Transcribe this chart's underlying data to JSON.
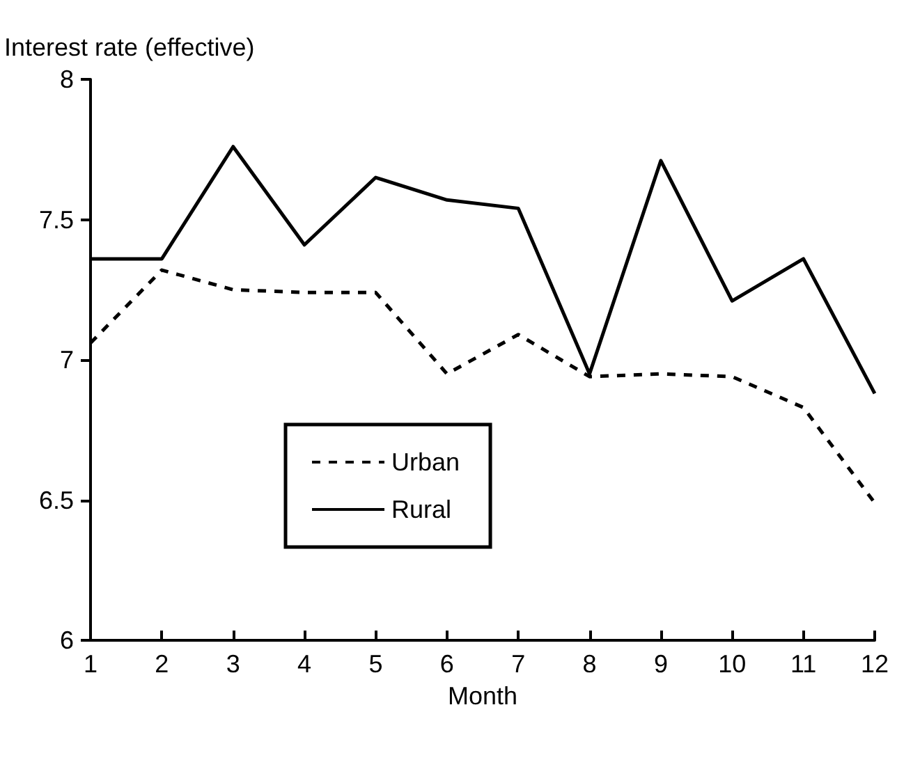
{
  "chart_data": {
    "type": "line",
    "xlabel": "Month",
    "ylabel": "Interest rate (effective)",
    "x": [
      1,
      2,
      3,
      4,
      5,
      6,
      7,
      8,
      9,
      10,
      11,
      12
    ],
    "series": [
      {
        "name": "Urban",
        "color": "#000000",
        "line_style": "dashed",
        "values": [
          7.06,
          7.32,
          7.25,
          7.24,
          7.24,
          6.95,
          7.09,
          6.94,
          6.95,
          6.94,
          6.83,
          6.49
        ]
      },
      {
        "name": "Rural",
        "color": "#000000",
        "line_style": "solid",
        "values": [
          7.36,
          7.36,
          7.76,
          7.41,
          7.65,
          7.57,
          7.54,
          6.95,
          7.71,
          7.21,
          7.36,
          6.88
        ]
      }
    ],
    "xlim": [
      1,
      12
    ],
    "xticks": [
      1,
      2,
      3,
      4,
      5,
      6,
      7,
      8,
      9,
      10,
      11,
      12
    ],
    "ylim": [
      6,
      8
    ],
    "yticks": [
      6,
      6.5,
      7,
      7.5,
      8
    ],
    "grid": false,
    "legend": "bottom left",
    "marker": "none"
  }
}
